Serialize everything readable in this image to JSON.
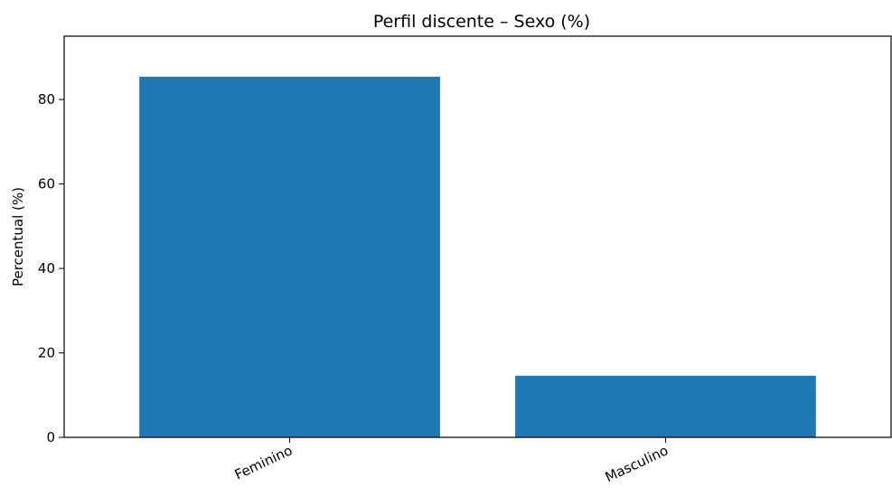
{
  "chart_data": {
    "type": "bar",
    "title": "Perfil discente – Sexo (%)",
    "xlabel": "",
    "ylabel": "Percentual (%)",
    "categories": [
      "Feminino",
      "Masculino"
    ],
    "values": [
      85.4,
      14.6
    ],
    "ylim": [
      0,
      95
    ],
    "yticks": [
      0,
      20,
      40,
      60,
      80
    ],
    "colors": {
      "bar": "#1f77b4",
      "axis": "#000000"
    },
    "grid": false,
    "legend": "none"
  }
}
